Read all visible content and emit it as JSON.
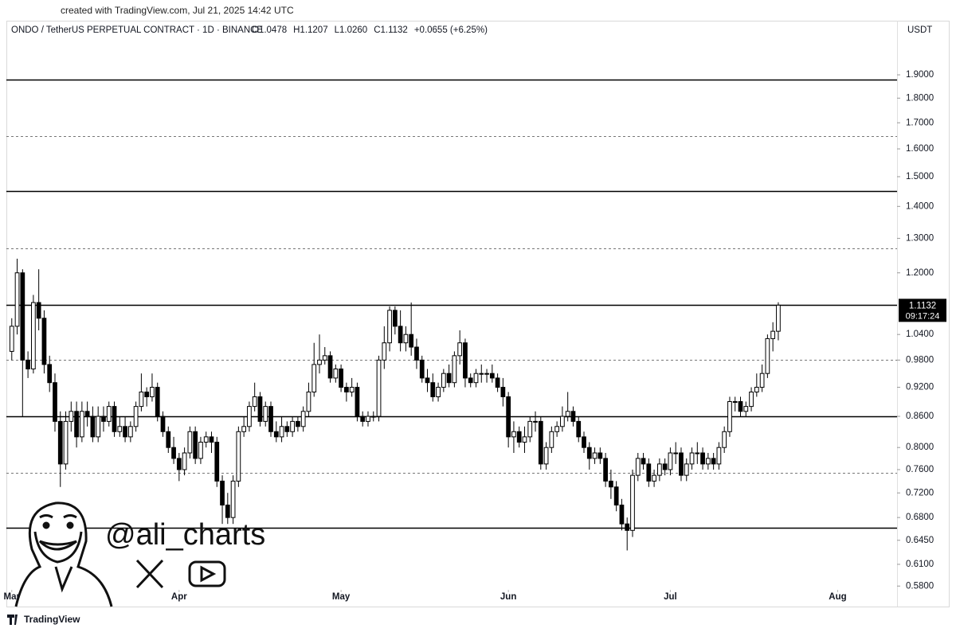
{
  "chart_data": {
    "type": "candlestick",
    "created_note": "created with TradingView.com, Jul 21, 2025 14:42 UTC",
    "title": "ONDO / TetherUS PERPETUAL CONTRACT · 1D · BINANCE",
    "ohlc_text": [
      "O1.0478",
      "H1.1207",
      "L1.0260",
      "C1.1132",
      "+0.0655 (+6.25%)"
    ],
    "currency": "USDT",
    "countdown": "09:17:24",
    "watermark": "@ali_charts",
    "brand": "TradingView",
    "log_scale": true,
    "up_color": "#ffffff",
    "down_color": "#000000",
    "wick_color": "#000000",
    "xlim": [
      -1,
      164
    ],
    "xticks": [
      {
        "value": 0,
        "label": "Mar"
      },
      {
        "value": 31,
        "label": "Apr"
      },
      {
        "value": 61,
        "label": "May"
      },
      {
        "value": 92,
        "label": "Jun"
      },
      {
        "value": 122,
        "label": "Jul"
      },
      {
        "value": 153,
        "label": "Aug"
      }
    ],
    "ylim": [
      0.576,
      2.061
    ],
    "yticks": [
      {
        "value": 0.58,
        "label": "0.5800"
      },
      {
        "value": 0.61,
        "label": "0.6100"
      },
      {
        "value": 0.645,
        "label": "0.6450"
      },
      {
        "value": 0.68,
        "label": "0.6800"
      },
      {
        "value": 0.72,
        "label": "0.7200"
      },
      {
        "value": 0.76,
        "label": "0.7600"
      },
      {
        "value": 0.8,
        "label": "0.8000"
      },
      {
        "value": 0.86,
        "label": "0.8600"
      },
      {
        "value": 0.92,
        "label": "0.9200"
      },
      {
        "value": 0.98,
        "label": "0.9800"
      },
      {
        "value": 1.04,
        "label": "1.0400"
      },
      {
        "value": 1.2,
        "label": "1.2000"
      },
      {
        "value": 1.3,
        "label": "1.3000"
      },
      {
        "value": 1.4,
        "label": "1.4000"
      },
      {
        "value": 1.5,
        "label": "1.5000"
      },
      {
        "value": 1.6,
        "label": "1.6000"
      },
      {
        "value": 1.7,
        "label": "1.7000"
      },
      {
        "value": 1.8,
        "label": "1.8000"
      },
      {
        "value": 1.9,
        "label": "1.9000"
      }
    ],
    "levels": [
      {
        "value": 1.88,
        "style": "solid"
      },
      {
        "value": 1.648,
        "style": "dashed"
      },
      {
        "value": 1.45,
        "style": "solid"
      },
      {
        "value": 1.27,
        "style": "dashed"
      },
      {
        "value": 1.115,
        "style": "solid"
      },
      {
        "value": 0.98,
        "style": "dashed"
      },
      {
        "value": 0.86,
        "style": "solid"
      },
      {
        "value": 0.755,
        "style": "dashed"
      },
      {
        "value": 0.664,
        "style": "solid"
      }
    ],
    "open": [
      1.0,
      1.06,
      1.2,
      0.98,
      0.96,
      1.12,
      1.08,
      0.97,
      0.93,
      0.85,
      0.77,
      0.85,
      0.87,
      0.82,
      0.87,
      0.86,
      0.82,
      0.86,
      0.85,
      0.88,
      0.83,
      0.84,
      0.82,
      0.84,
      0.88,
      0.91,
      0.9,
      0.92,
      0.86,
      0.83,
      0.8,
      0.78,
      0.76,
      0.79,
      0.83,
      0.78,
      0.81,
      0.82,
      0.81,
      0.74,
      0.7,
      0.68,
      0.74,
      0.83,
      0.84,
      0.88,
      0.9,
      0.85,
      0.88,
      0.83,
      0.82,
      0.84,
      0.83,
      0.85,
      0.84,
      0.87,
      0.91,
      0.97,
      0.98,
      0.99,
      0.94,
      0.96,
      0.92,
      0.91,
      0.92,
      0.86,
      0.85,
      0.86,
      0.86,
      0.98,
      1.02,
      1.1,
      1.06,
      1.02,
      1.04,
      1.01,
      0.98,
      0.94,
      0.93,
      0.9,
      0.92,
      0.95,
      0.93,
      0.99,
      1.02,
      0.94,
      0.93,
      0.95,
      0.95,
      0.95,
      0.94,
      0.92,
      0.9,
      0.82,
      0.83,
      0.81,
      0.82,
      0.85,
      0.85,
      0.77,
      0.8,
      0.83,
      0.84,
      0.86,
      0.87,
      0.85,
      0.82,
      0.8,
      0.78,
      0.79,
      0.78,
      0.74,
      0.73,
      0.7,
      0.67,
      0.66,
      0.75,
      0.78,
      0.77,
      0.74,
      0.75,
      0.77,
      0.76,
      0.79,
      0.79,
      0.75,
      0.77,
      0.79,
      0.79,
      0.77,
      0.78,
      0.77,
      0.8,
      0.83,
      0.89,
      0.89,
      0.87,
      0.88,
      0.91,
      0.92,
      0.95,
      1.03,
      1.0478
    ],
    "high": [
      1.08,
      1.24,
      1.21,
      1.0,
      1.14,
      1.21,
      1.1,
      0.99,
      0.95,
      0.87,
      0.87,
      0.89,
      0.89,
      0.89,
      0.89,
      0.88,
      0.88,
      0.88,
      0.89,
      0.89,
      0.86,
      0.86,
      0.85,
      0.89,
      0.95,
      0.92,
      0.95,
      0.93,
      0.87,
      0.84,
      0.82,
      0.79,
      0.8,
      0.84,
      0.84,
      0.82,
      0.83,
      0.83,
      0.82,
      0.75,
      0.72,
      0.75,
      0.84,
      0.86,
      0.89,
      0.93,
      0.91,
      0.89,
      0.89,
      0.85,
      0.86,
      0.85,
      0.86,
      0.86,
      0.88,
      0.93,
      1.02,
      1.04,
      1.01,
      1.0,
      0.97,
      0.97,
      0.93,
      0.94,
      0.93,
      0.87,
      0.87,
      0.87,
      0.99,
      1.06,
      1.11,
      1.11,
      1.1,
      1.06,
      1.12,
      1.03,
      0.99,
      0.96,
      0.95,
      0.93,
      0.96,
      0.97,
      1.0,
      1.05,
      1.03,
      0.95,
      0.96,
      0.97,
      0.96,
      0.97,
      0.95,
      0.94,
      0.91,
      0.85,
      0.84,
      0.84,
      0.86,
      0.87,
      0.86,
      0.81,
      0.84,
      0.85,
      0.88,
      0.91,
      0.88,
      0.86,
      0.83,
      0.81,
      0.8,
      0.8,
      0.79,
      0.76,
      0.74,
      0.71,
      0.68,
      0.76,
      0.79,
      0.79,
      0.78,
      0.76,
      0.78,
      0.78,
      0.8,
      0.81,
      0.8,
      0.78,
      0.8,
      0.81,
      0.8,
      0.79,
      0.79,
      0.81,
      0.84,
      0.9,
      0.9,
      0.9,
      0.89,
      0.92,
      0.95,
      0.97,
      1.04,
      1.07,
      1.1207
    ],
    "low": [
      0.98,
      1.04,
      0.86,
      0.94,
      0.95,
      1.05,
      0.95,
      0.91,
      0.83,
      0.73,
      0.76,
      0.83,
      0.8,
      0.81,
      0.84,
      0.81,
      0.81,
      0.83,
      0.84,
      0.82,
      0.82,
      0.81,
      0.81,
      0.83,
      0.87,
      0.88,
      0.89,
      0.85,
      0.82,
      0.79,
      0.77,
      0.74,
      0.75,
      0.78,
      0.77,
      0.77,
      0.8,
      0.79,
      0.73,
      0.67,
      0.67,
      0.67,
      0.73,
      0.82,
      0.83,
      0.87,
      0.84,
      0.84,
      0.82,
      0.81,
      0.81,
      0.82,
      0.82,
      0.83,
      0.83,
      0.86,
      0.9,
      0.95,
      0.97,
      0.93,
      0.93,
      0.91,
      0.89,
      0.9,
      0.85,
      0.84,
      0.84,
      0.85,
      0.85,
      0.96,
      1.0,
      1.04,
      1.0,
      1.0,
      0.99,
      0.96,
      0.93,
      0.91,
      0.89,
      0.89,
      0.91,
      0.92,
      0.92,
      0.97,
      0.92,
      0.92,
      0.92,
      0.93,
      0.93,
      0.93,
      0.91,
      0.88,
      0.8,
      0.79,
      0.8,
      0.79,
      0.81,
      0.83,
      0.76,
      0.76,
      0.79,
      0.82,
      0.83,
      0.85,
      0.84,
      0.81,
      0.79,
      0.76,
      0.77,
      0.77,
      0.73,
      0.71,
      0.69,
      0.66,
      0.63,
      0.65,
      0.74,
      0.76,
      0.73,
      0.73,
      0.74,
      0.75,
      0.75,
      0.77,
      0.74,
      0.74,
      0.76,
      0.77,
      0.76,
      0.76,
      0.76,
      0.76,
      0.79,
      0.82,
      0.87,
      0.86,
      0.86,
      0.87,
      0.9,
      0.91,
      0.94,
      1.0,
      1.026
    ],
    "close": [
      1.06,
      1.2,
      0.98,
      0.96,
      1.12,
      1.08,
      0.97,
      0.93,
      0.85,
      0.77,
      0.85,
      0.87,
      0.82,
      0.87,
      0.86,
      0.82,
      0.86,
      0.85,
      0.88,
      0.83,
      0.84,
      0.82,
      0.84,
      0.88,
      0.91,
      0.9,
      0.92,
      0.86,
      0.83,
      0.8,
      0.78,
      0.76,
      0.79,
      0.83,
      0.78,
      0.81,
      0.82,
      0.81,
      0.74,
      0.7,
      0.68,
      0.74,
      0.83,
      0.84,
      0.88,
      0.9,
      0.85,
      0.88,
      0.83,
      0.82,
      0.84,
      0.83,
      0.85,
      0.84,
      0.87,
      0.91,
      0.97,
      0.98,
      0.99,
      0.94,
      0.96,
      0.92,
      0.91,
      0.92,
      0.86,
      0.85,
      0.86,
      0.86,
      0.98,
      1.02,
      1.1,
      1.06,
      1.02,
      1.04,
      1.01,
      0.98,
      0.94,
      0.93,
      0.9,
      0.92,
      0.95,
      0.93,
      0.99,
      1.02,
      0.94,
      0.93,
      0.95,
      0.95,
      0.95,
      0.94,
      0.92,
      0.9,
      0.82,
      0.83,
      0.81,
      0.82,
      0.85,
      0.85,
      0.77,
      0.8,
      0.83,
      0.84,
      0.86,
      0.87,
      0.85,
      0.82,
      0.8,
      0.78,
      0.79,
      0.78,
      0.74,
      0.73,
      0.7,
      0.67,
      0.66,
      0.75,
      0.78,
      0.77,
      0.74,
      0.75,
      0.77,
      0.76,
      0.79,
      0.79,
      0.75,
      0.77,
      0.79,
      0.79,
      0.77,
      0.78,
      0.77,
      0.8,
      0.83,
      0.89,
      0.89,
      0.87,
      0.88,
      0.91,
      0.92,
      0.95,
      1.03,
      1.0478,
      1.1132
    ]
  }
}
